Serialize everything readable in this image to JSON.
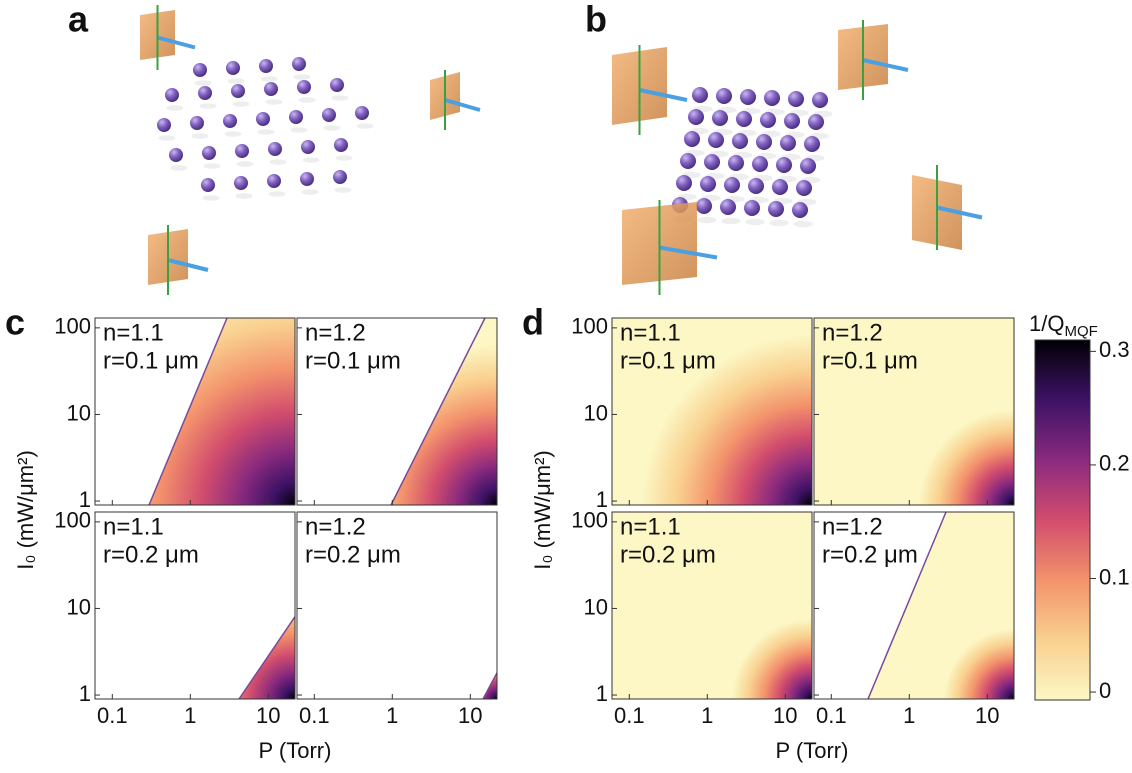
{
  "panels": {
    "a": {
      "label": "a"
    },
    "b": {
      "label": "b"
    }
  },
  "heatmaps": [
    {
      "label": "c",
      "xlabel": "P (Torr)",
      "ylabel": "I₀ (mW/μm²)",
      "log": true,
      "xlim": [
        0.06,
        22
      ],
      "ylim": [
        0.9,
        130
      ],
      "xticks": [
        0.1,
        1,
        10
      ],
      "yticks": [
        1,
        10,
        100
      ],
      "subplots": [
        {
          "n": "n=1.1",
          "r": "r=0.1 μm"
        },
        {
          "n": "n=1.2",
          "r": "r=0.1 μm"
        },
        {
          "n": "n=1.1",
          "r": "r=0.2 μm"
        },
        {
          "n": "n=1.2",
          "r": "r=0.2 μm"
        }
      ]
    },
    {
      "label": "d",
      "xlabel": "P (Torr)",
      "ylabel": "I₀ (mW/μm²)",
      "log": true,
      "xlim": [
        0.06,
        22
      ],
      "ylim": [
        0.9,
        130
      ],
      "xticks": [
        0.1,
        1,
        10
      ],
      "yticks": [
        1,
        10,
        100
      ],
      "subplots": [
        {
          "n": "n=1.1",
          "r": "r=0.1 μm"
        },
        {
          "n": "n=1.2",
          "r": "r=0.1 μm"
        },
        {
          "n": "n=1.1",
          "r": "r=0.2 μm"
        },
        {
          "n": "n=1.2",
          "r": "r=0.2 μm"
        }
      ]
    }
  ],
  "colorbar": {
    "title": "1/Q",
    "subscript": "MQF",
    "lim": [
      -0.007,
      0.31
    ],
    "ticks": [
      0,
      0.1,
      0.2,
      0.3
    ],
    "colors": [
      "#fcf7c4",
      "#f9d08f",
      "#f3926c",
      "#d24d6d",
      "#8a2a7e",
      "#3d1265",
      "#000004"
    ]
  }
}
